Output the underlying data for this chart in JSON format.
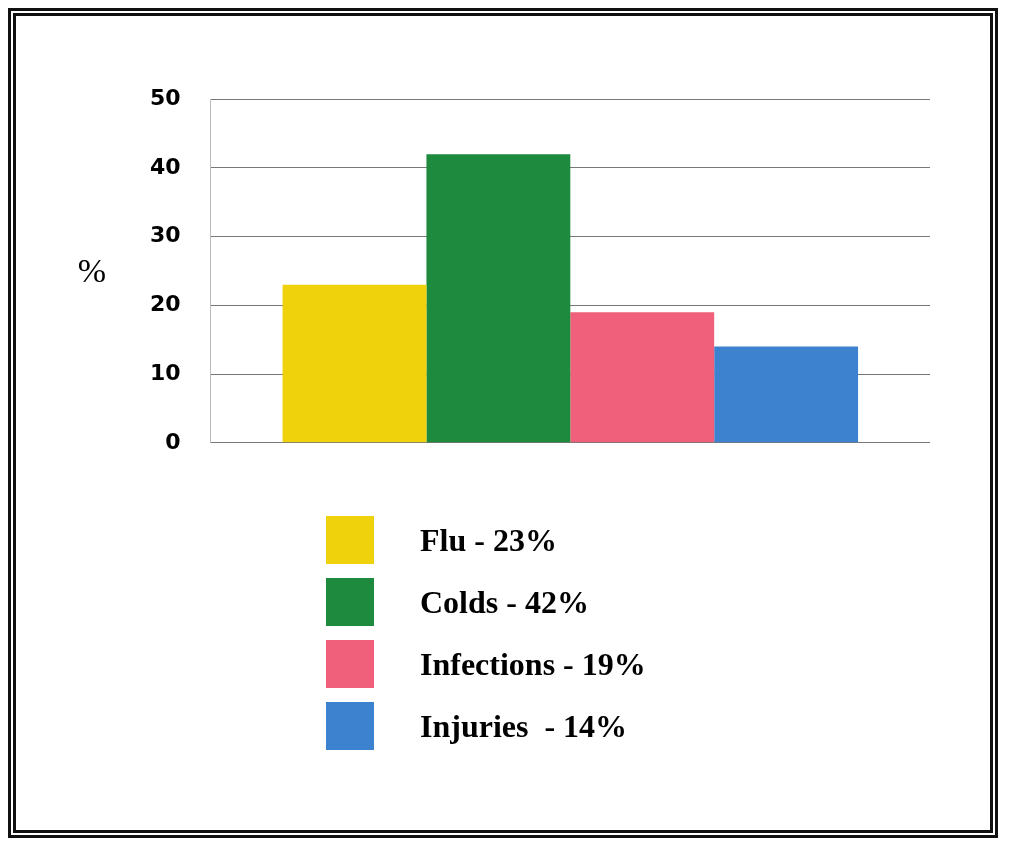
{
  "chart_data": {
    "type": "bar",
    "ylabel": "%",
    "categories": [
      null
    ],
    "series": [
      {
        "name": "Flu - 23%",
        "color": "#f0d20c",
        "values": [
          23
        ]
      },
      {
        "name": "Colds - 42%",
        "color": "#1e8a3e",
        "values": [
          42
        ]
      },
      {
        "name": "Infections - 19%",
        "color": "#f0607a",
        "values": [
          19
        ]
      },
      {
        "name": "Injuries  - 14%",
        "color": "#3d82cf",
        "values": [
          14
        ]
      }
    ],
    "ylim": [
      0,
      50
    ],
    "yticks": [
      0,
      10,
      20,
      30,
      40,
      50
    ],
    "grid": "y",
    "legend": "bottom"
  }
}
